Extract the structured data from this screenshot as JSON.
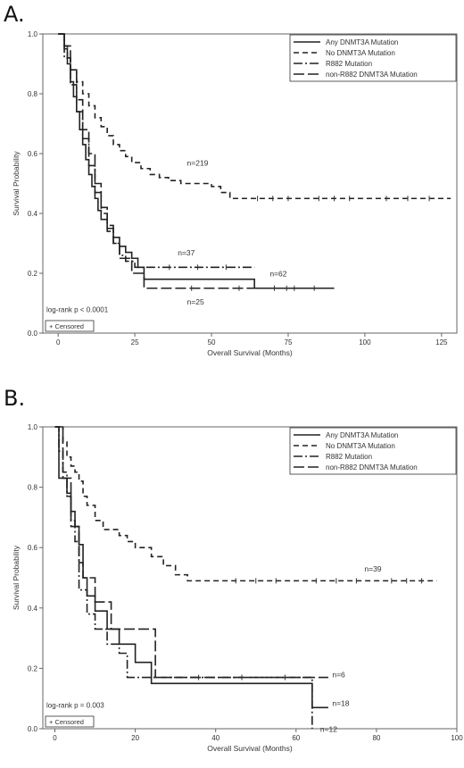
{
  "panels": [
    {
      "label": "A."
    },
    {
      "label": "B."
    }
  ],
  "chart_data": [
    {
      "type": "line",
      "title": "",
      "xlabel": "Overall Survival (Months)",
      "ylabel": "Survival Probability",
      "xlim": [
        -5,
        130
      ],
      "ylim": [
        0,
        1.0
      ],
      "xticks": [
        0,
        25,
        50,
        75,
        100,
        125
      ],
      "yticks": [
        0.0,
        0.2,
        0.4,
        0.6,
        0.8,
        1.0
      ],
      "legend_position": "top-right",
      "legend": [
        "Any DNMT3A Mutation",
        "No DNMT3A Mutation",
        "R882 Mutation",
        "non-R882 DNMT3A Mutation"
      ],
      "censored_legend": "+ Censored",
      "pvalue_text": "log-rank p < 0.0001",
      "series": [
        {
          "name": "Any DNMT3A Mutation",
          "dash": "solid",
          "x": [
            0,
            2,
            3,
            4,
            5,
            6,
            7,
            8,
            9,
            10,
            11,
            12,
            13,
            14,
            16,
            18,
            20,
            22,
            24,
            26,
            28,
            64,
            90
          ],
          "y": [
            1.0,
            0.95,
            0.9,
            0.84,
            0.79,
            0.74,
            0.68,
            0.63,
            0.58,
            0.53,
            0.49,
            0.45,
            0.41,
            0.38,
            0.35,
            0.32,
            0.29,
            0.27,
            0.25,
            0.22,
            0.18,
            0.15,
            0.15
          ]
        },
        {
          "name": "No DNMT3A Mutation",
          "dash": "6,4",
          "x": [
            0,
            2,
            3,
            4,
            6,
            8,
            10,
            12,
            14,
            16,
            18,
            20,
            22,
            24,
            27,
            30,
            33,
            36,
            40,
            44,
            50,
            53,
            56,
            60,
            80,
            100,
            128
          ],
          "y": [
            1.0,
            0.96,
            0.92,
            0.88,
            0.84,
            0.8,
            0.76,
            0.72,
            0.69,
            0.66,
            0.63,
            0.61,
            0.59,
            0.57,
            0.55,
            0.53,
            0.52,
            0.51,
            0.5,
            0.5,
            0.49,
            0.47,
            0.45,
            0.45,
            0.45,
            0.45,
            0.45
          ]
        },
        {
          "name": "R882 Mutation",
          "dash": "10,3,2,3",
          "x": [
            0,
            2,
            4,
            6,
            8,
            10,
            12,
            14,
            16,
            18,
            20,
            22,
            25,
            27,
            64
          ],
          "y": [
            1.0,
            0.92,
            0.83,
            0.74,
            0.65,
            0.56,
            0.47,
            0.4,
            0.34,
            0.3,
            0.26,
            0.24,
            0.22,
            0.22,
            0.22
          ]
        },
        {
          "name": "non-R882 DNMT3A Mutation",
          "dash": "12,4",
          "x": [
            0,
            2,
            4,
            6,
            8,
            10,
            12,
            14,
            16,
            18,
            20,
            24,
            28,
            90
          ],
          "y": [
            1.0,
            0.96,
            0.88,
            0.78,
            0.68,
            0.6,
            0.5,
            0.42,
            0.36,
            0.3,
            0.25,
            0.2,
            0.15,
            0.15
          ]
        }
      ],
      "annotations": [
        {
          "text": "n=219",
          "x": 42,
          "y": 0.56
        },
        {
          "text": "n=37",
          "x": 39,
          "y": 0.26
        },
        {
          "text": "n=62",
          "x": 69,
          "y": 0.19
        },
        {
          "text": "n=25",
          "x": 42,
          "y": 0.095
        }
      ]
    },
    {
      "type": "line",
      "title": "",
      "xlabel": "Overall Survival (Months)",
      "ylabel": "Survival Probability",
      "xlim": [
        -3,
        100
      ],
      "ylim": [
        0,
        1.0
      ],
      "xticks": [
        0,
        20,
        40,
        60,
        80,
        100
      ],
      "yticks": [
        0.0,
        0.2,
        0.4,
        0.6,
        0.8,
        1.0
      ],
      "legend_position": "top-right",
      "legend": [
        "Any DNMT3A Mutation",
        "No DNMT3A Mutation",
        "R882 Mutation",
        "non-R882 DNMT3A Mutation"
      ],
      "censored_legend": "+ Censored",
      "pvalue_text": "log-rank p = 0.003",
      "series": [
        {
          "name": "Any DNMT3A Mutation",
          "dash": "solid",
          "x": [
            0,
            1,
            2,
            3,
            4,
            5,
            6,
            7,
            8,
            10,
            13,
            16,
            20,
            24,
            64,
            68
          ],
          "y": [
            1.0,
            0.83,
            0.83,
            0.78,
            0.72,
            0.67,
            0.61,
            0.5,
            0.44,
            0.39,
            0.33,
            0.28,
            0.22,
            0.15,
            0.07,
            0.07
          ]
        },
        {
          "name": "No DNMT3A Mutation",
          "dash": "6,4",
          "x": [
            0,
            2,
            3,
            4,
            5,
            6,
            7,
            8,
            10,
            12,
            14,
            16,
            18,
            20,
            24,
            27,
            30,
            33,
            36,
            40,
            60,
            80,
            95
          ],
          "y": [
            1.0,
            0.95,
            0.9,
            0.87,
            0.85,
            0.82,
            0.77,
            0.74,
            0.69,
            0.66,
            0.66,
            0.64,
            0.62,
            0.6,
            0.57,
            0.54,
            0.51,
            0.49,
            0.49,
            0.49,
            0.49,
            0.49,
            0.49
          ]
        },
        {
          "name": "R882 Mutation",
          "dash": "10,3,2,3",
          "x": [
            0,
            1,
            2,
            3,
            4,
            5,
            6,
            8,
            10,
            13,
            16,
            18,
            20,
            64
          ],
          "y": [
            1.0,
            0.92,
            0.85,
            0.77,
            0.69,
            0.62,
            0.46,
            0.38,
            0.33,
            0.28,
            0.25,
            0.17,
            0.17,
            0.0
          ]
        },
        {
          "name": "non-R882 DNMT3A Mutation",
          "dash": "12,4",
          "x": [
            0,
            2,
            4,
            6,
            7,
            10,
            14,
            18,
            25,
            68
          ],
          "y": [
            1.0,
            0.83,
            0.67,
            0.55,
            0.5,
            0.42,
            0.33,
            0.33,
            0.17,
            0.17
          ]
        }
      ],
      "annotations": [
        {
          "text": "n=39",
          "x": 77,
          "y": 0.52
        },
        {
          "text": "n=6",
          "x": 69,
          "y": 0.17
        },
        {
          "text": "n=18",
          "x": 69,
          "y": 0.075
        },
        {
          "text": "n=12",
          "x": 66,
          "y": -0.01
        }
      ]
    }
  ]
}
